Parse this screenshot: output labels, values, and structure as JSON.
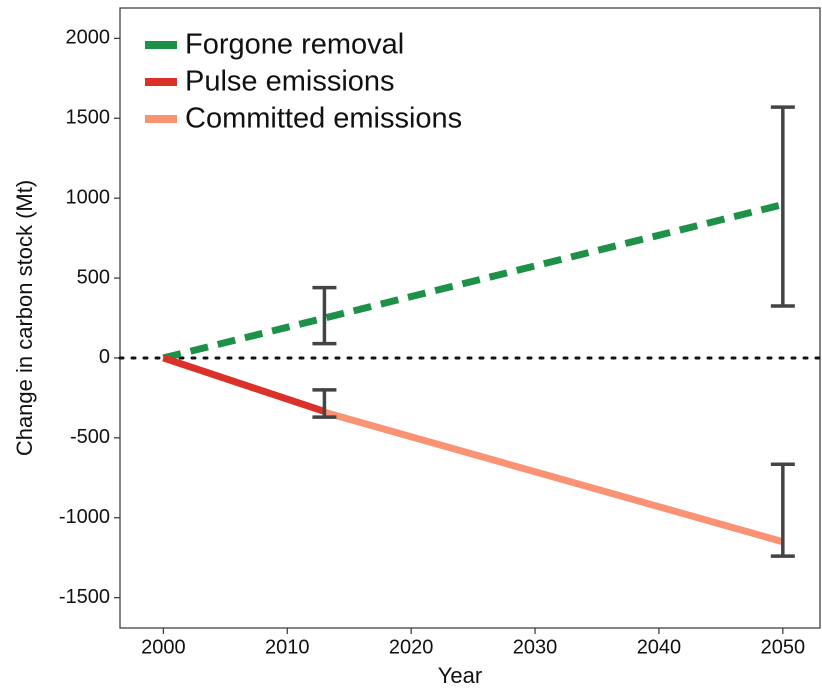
{
  "chart_data": {
    "type": "line",
    "xlabel": "Year",
    "ylabel": "Change in carbon stock (Mt)",
    "xlim": [
      1996.5,
      2053
    ],
    "xticks": [
      2000,
      2010,
      2020,
      2030,
      2040,
      2050
    ],
    "ylim": [
      -1690,
      2190
    ],
    "yticks": [
      -1500,
      -1000,
      -500,
      0,
      500,
      1000,
      1500,
      2000
    ],
    "hline": 0,
    "legend": "upper left",
    "series": [
      {
        "name": "Forgone removal",
        "color": "#1e9148",
        "style": "dashed",
        "x": [
          2000,
          2050
        ],
        "values": [
          0,
          960
        ]
      },
      {
        "name": "Pulse emissions",
        "color": "#dc3128",
        "style": "solid",
        "x": [
          2000,
          2013
        ],
        "values": [
          0,
          -335
        ]
      },
      {
        "name": "Committed emissions",
        "color": "#fa9373",
        "style": "solid",
        "x": [
          2013,
          2050
        ],
        "values": [
          -340,
          -1150
        ]
      }
    ],
    "error_bars": [
      {
        "x": 2013,
        "low": 90,
        "high": 440
      },
      {
        "x": 2050,
        "low": 325,
        "high": 1570
      },
      {
        "x": 2013,
        "low": -370,
        "high": -200
      },
      {
        "x": 2050,
        "low": -1240,
        "high": -665
      }
    ]
  }
}
